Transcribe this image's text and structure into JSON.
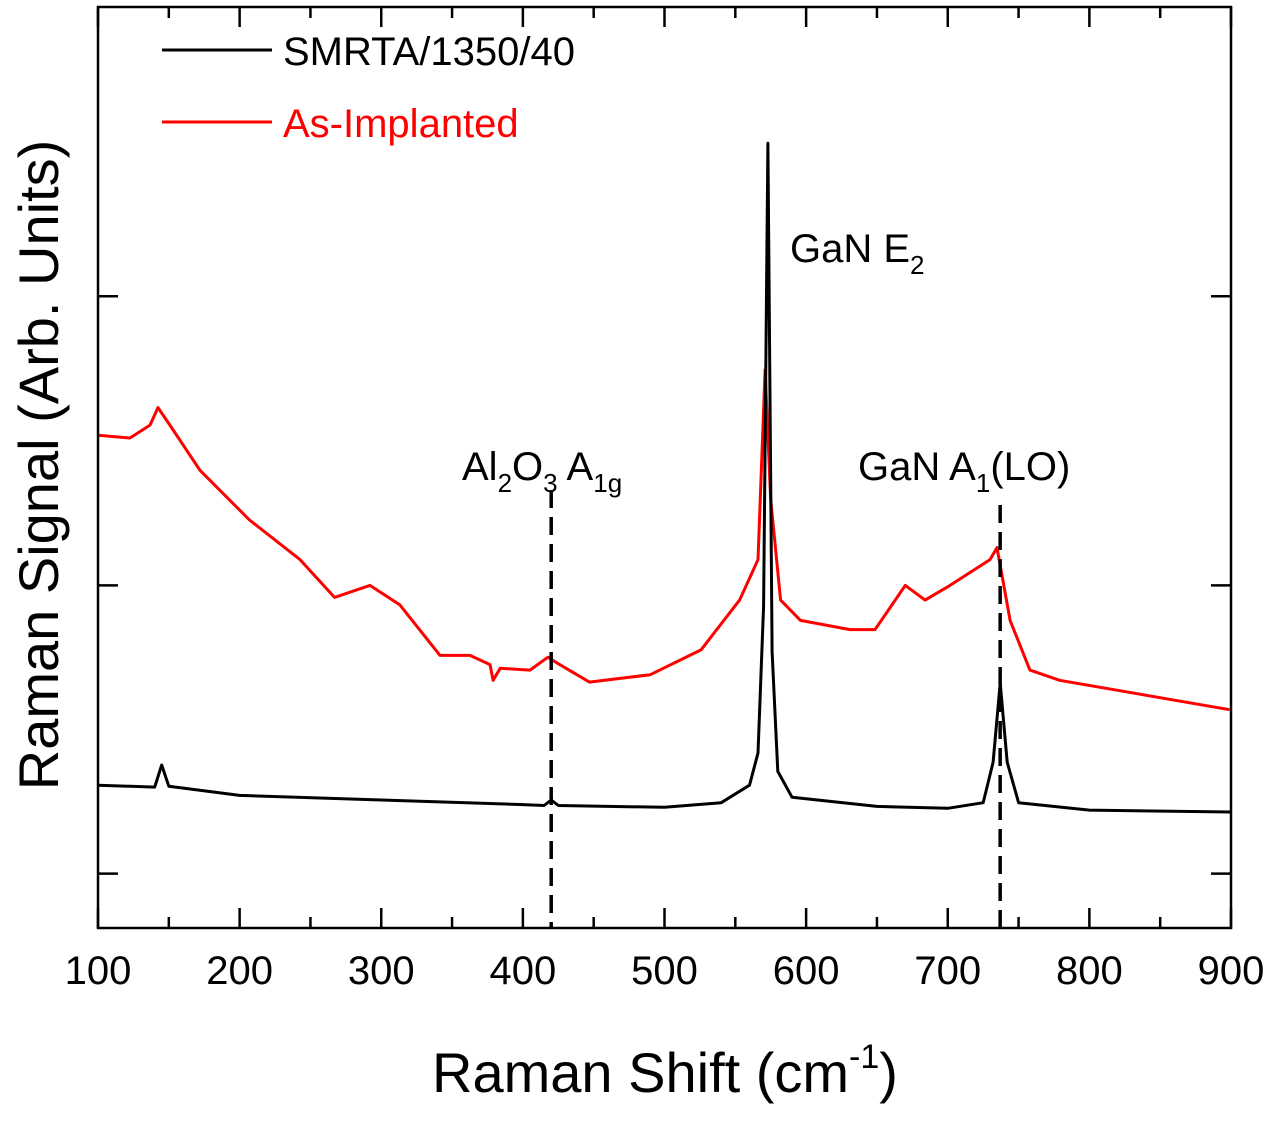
{
  "chart_data": {
    "type": "line",
    "title": "",
    "xlabel": "Raman Shift (cm",
    "xlabel_sup": "-1",
    "xlabel_end": ")",
    "ylabel": "Raman Signal (Arb. Units)",
    "xlim": [
      100,
      900
    ],
    "ylim": [
      0,
      100
    ],
    "xticks": [
      100,
      200,
      300,
      400,
      500,
      600,
      700,
      800,
      900
    ],
    "yticks_unlabeled": [
      5.9,
      37.2,
      68.6
    ],
    "grid": false,
    "legend_position": "top-left",
    "series": [
      {
        "name": "SMRTA/1350/40",
        "color": "#000000",
        "x": [
          100,
          140,
          145,
          150,
          200,
          300,
          400,
          415,
          420,
          425,
          500,
          540,
          560,
          566,
          570,
          573,
          576,
          580,
          590,
          650,
          700,
          725,
          732,
          737,
          742,
          750,
          800,
          900
        ],
        "y": [
          15.5,
          15.3,
          17.7,
          15.4,
          14.4,
          13.9,
          13.4,
          13.3,
          13.9,
          13.3,
          13.1,
          13.6,
          15.5,
          19,
          35,
          85.2,
          30,
          17,
          14.2,
          13.2,
          13.0,
          13.6,
          18,
          26.6,
          18,
          13.6,
          12.8,
          12.6
        ]
      },
      {
        "name": "As-Implanted",
        "color": "#ff0000",
        "x": [
          100,
          122.6,
          136.7,
          142.4,
          150.8,
          172,
          207,
          242.6,
          267,
          292,
          313,
          341.5,
          362.7,
          376.8,
          379,
          384,
          405,
          417.7,
          426,
          447,
          490,
          525.8,
          553,
          566,
          571,
          575,
          582,
          596,
          631,
          648.6,
          670,
          684,
          701.6,
          729.8,
          734.8,
          744,
          758,
          779,
          899
        ],
        "y": [
          53.5,
          53.2,
          54.6,
          56.5,
          54.6,
          49.7,
          44.3,
          40.0,
          35.9,
          37.2,
          35.1,
          29.6,
          29.6,
          28.6,
          26.9,
          28.2,
          28.0,
          29.4,
          28.6,
          26.7,
          27.5,
          30.2,
          35.6,
          40.0,
          60.6,
          46.5,
          35.6,
          33.4,
          32.4,
          32.4,
          37.2,
          35.6,
          37.2,
          40.0,
          41.3,
          33.4,
          28.0,
          26.9,
          23.7
        ]
      }
    ],
    "annotations": [
      {
        "name": "gan-e2",
        "parts": [
          {
            "t": "GaN E"
          },
          {
            "t": "2",
            "sub": true
          }
        ]
      },
      {
        "name": "al2o3-a1g",
        "parts": [
          {
            "t": "Al"
          },
          {
            "t": "2",
            "sub": true
          },
          {
            "t": "O"
          },
          {
            "t": "3",
            "sub": true
          },
          {
            "t": " A"
          },
          {
            "t": "1g",
            "sub": true
          }
        ],
        "marker_x": 420
      },
      {
        "name": "gan-a1lo",
        "parts": [
          {
            "t": "GaN A"
          },
          {
            "t": "1",
            "sub": true
          },
          {
            "t": "(LO)"
          }
        ],
        "marker_x": 737
      }
    ]
  }
}
